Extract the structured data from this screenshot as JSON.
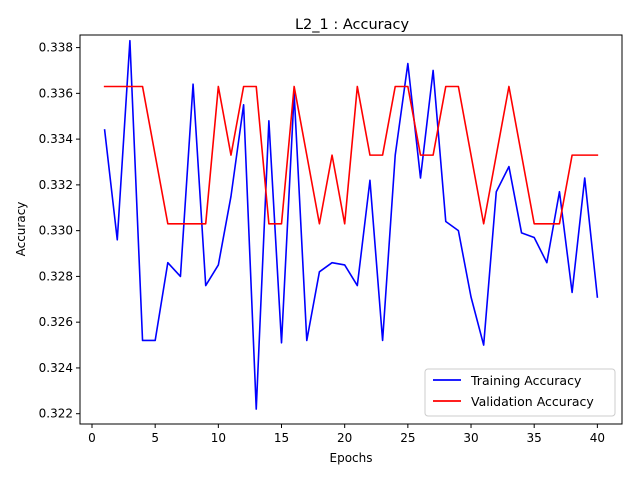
{
  "chart_data": {
    "type": "line",
    "title": "L2_1 : Accuracy",
    "xlabel": "Epochs",
    "ylabel": "Accuracy",
    "xlim": [
      -0.95,
      41.95
    ],
    "ylim": [
      0.32155,
      0.33855
    ],
    "xticks": [
      0,
      5,
      10,
      15,
      20,
      25,
      30,
      35,
      40
    ],
    "xtick_labels": [
      "0",
      "5",
      "10",
      "15",
      "20",
      "25",
      "30",
      "35",
      "40"
    ],
    "yticks": [
      0.322,
      0.324,
      0.326,
      0.328,
      0.33,
      0.332,
      0.334,
      0.336,
      0.338
    ],
    "ytick_labels": [
      "0.322",
      "0.324",
      "0.326",
      "0.328",
      "0.330",
      "0.332",
      "0.334",
      "0.336",
      "0.338"
    ],
    "grid": false,
    "legend_position": "lower-right",
    "x": [
      1,
      2,
      3,
      4,
      5,
      6,
      7,
      8,
      9,
      10,
      11,
      12,
      13,
      14,
      15,
      16,
      17,
      18,
      19,
      20,
      21,
      22,
      23,
      24,
      25,
      26,
      27,
      28,
      29,
      30,
      31,
      32,
      33,
      34,
      35,
      36,
      37,
      38,
      39,
      40
    ],
    "series": [
      {
        "name": "Training Accuracy",
        "color": "#0000ff",
        "values": [
          0.3344,
          0.3296,
          0.3383,
          0.3252,
          0.3252,
          0.3286,
          0.328,
          0.3364,
          0.3276,
          0.3285,
          0.3315,
          0.3355,
          0.3222,
          0.3348,
          0.3251,
          0.336,
          0.3252,
          0.3282,
          0.3286,
          0.3285,
          0.3276,
          0.3322,
          0.3252,
          0.3333,
          0.3373,
          0.3323,
          0.337,
          0.3304,
          0.33,
          0.3271,
          0.325,
          0.3317,
          0.3328,
          0.3299,
          0.3297,
          0.3286,
          0.3317,
          0.3273,
          0.3323,
          0.3271
        ]
      },
      {
        "name": "Validation Accuracy",
        "color": "#ff0000",
        "values": [
          0.3363,
          0.3363,
          0.3363,
          0.3363,
          0.3333,
          0.3303,
          0.3303,
          0.3303,
          0.3303,
          0.3363,
          0.3333,
          0.3363,
          0.3363,
          0.3303,
          0.3303,
          0.3363,
          0.3333,
          0.3303,
          0.3333,
          0.3303,
          0.3363,
          0.3333,
          0.3333,
          0.3363,
          0.3363,
          0.3333,
          0.3333,
          0.3363,
          0.3363,
          0.3333,
          0.3303,
          0.3333,
          0.3363,
          0.3333,
          0.3303,
          0.3303,
          0.3303,
          0.3333,
          0.3333,
          0.3333
        ]
      }
    ]
  }
}
